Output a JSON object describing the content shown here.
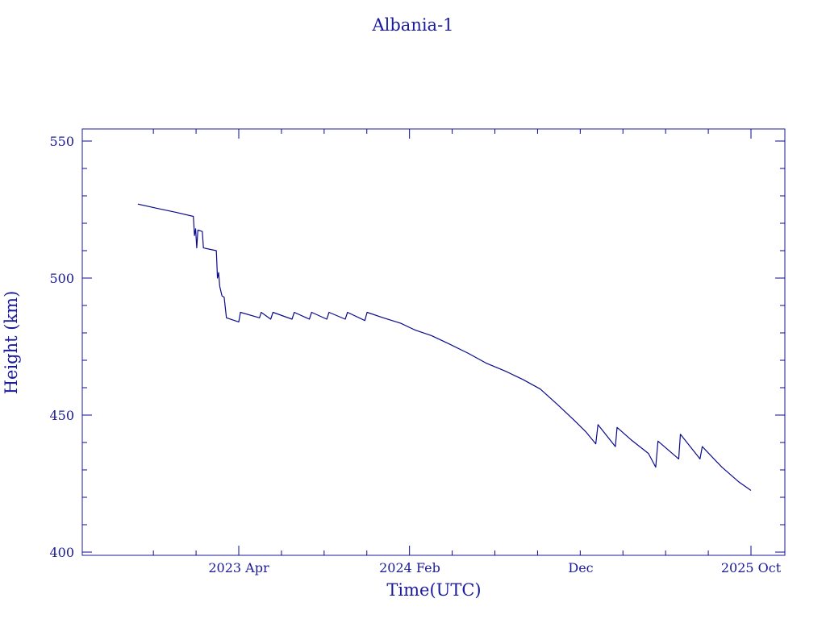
{
  "chart_data": {
    "type": "line",
    "title": "Albania-1",
    "xlabel": "Time(UTC)",
    "ylabel": "Height (km)",
    "ylim": [
      400,
      555
    ],
    "color": "#0a0a8c",
    "grid": false,
    "x_ticks": [
      "2023 Apr",
      "2024 Feb",
      "Dec",
      "2025 Oct"
    ],
    "y_ticks": [
      "400",
      "450",
      "500",
      "550"
    ],
    "series": [
      {
        "points": [
          [
            "2022-10-03",
            527.0
          ],
          [
            "2022-11-05",
            525.5
          ],
          [
            "2022-12-10",
            524.0
          ],
          [
            "2023-01-10",
            522.5
          ],
          [
            "2023-01-12",
            515.5
          ],
          [
            "2023-01-14",
            518.0
          ],
          [
            "2023-01-16",
            511.0
          ],
          [
            "2023-01-18",
            517.5
          ],
          [
            "2023-01-26",
            517.0
          ],
          [
            "2023-01-28",
            511.0
          ],
          [
            "2023-02-20",
            510.0
          ],
          [
            "2023-02-22",
            500.0
          ],
          [
            "2023-02-24",
            502.0
          ],
          [
            "2023-02-26",
            497.0
          ],
          [
            "2023-03-02",
            493.5
          ],
          [
            "2023-03-06",
            493.0
          ],
          [
            "2023-03-10",
            485.5
          ],
          [
            "2023-04-01",
            484.0
          ],
          [
            "2023-04-04",
            487.5
          ],
          [
            "2023-05-08",
            485.5
          ],
          [
            "2023-05-11",
            487.5
          ],
          [
            "2023-05-28",
            485.0
          ],
          [
            "2023-06-01",
            487.5
          ],
          [
            "2023-07-05",
            485.0
          ],
          [
            "2023-07-09",
            487.5
          ],
          [
            "2023-08-05",
            485.0
          ],
          [
            "2023-08-09",
            487.5
          ],
          [
            "2023-09-05",
            485.0
          ],
          [
            "2023-09-09",
            487.5
          ],
          [
            "2023-10-08",
            485.0
          ],
          [
            "2023-10-12",
            487.5
          ],
          [
            "2023-11-12",
            484.5
          ],
          [
            "2023-11-16",
            487.5
          ],
          [
            "2023-12-15",
            485.5
          ],
          [
            "2024-01-15",
            483.5
          ],
          [
            "2024-02-10",
            481.0
          ],
          [
            "2024-03-10",
            479.0
          ],
          [
            "2024-04-10",
            476.0
          ],
          [
            "2024-05-15",
            472.5
          ],
          [
            "2024-06-15",
            469.0
          ],
          [
            "2024-07-20",
            466.0
          ],
          [
            "2024-08-20",
            463.0
          ],
          [
            "2024-09-20",
            459.5
          ],
          [
            "2024-10-20",
            454.0
          ],
          [
            "2024-11-20",
            448.0
          ],
          [
            "2024-12-10",
            444.0
          ],
          [
            "2024-12-28",
            439.5
          ],
          [
            "2025-01-01",
            446.5
          ],
          [
            "2025-02-01",
            438.5
          ],
          [
            "2025-02-04",
            445.5
          ],
          [
            "2025-03-01",
            441.0
          ],
          [
            "2025-04-01",
            436.0
          ],
          [
            "2025-04-14",
            431.0
          ],
          [
            "2025-04-18",
            440.5
          ],
          [
            "2025-05-25",
            434.0
          ],
          [
            "2025-05-28",
            443.0
          ],
          [
            "2025-07-02",
            434.0
          ],
          [
            "2025-07-06",
            438.5
          ],
          [
            "2025-08-10",
            431.0
          ],
          [
            "2025-09-10",
            425.5
          ],
          [
            "2025-10-01",
            422.5
          ]
        ]
      }
    ]
  }
}
